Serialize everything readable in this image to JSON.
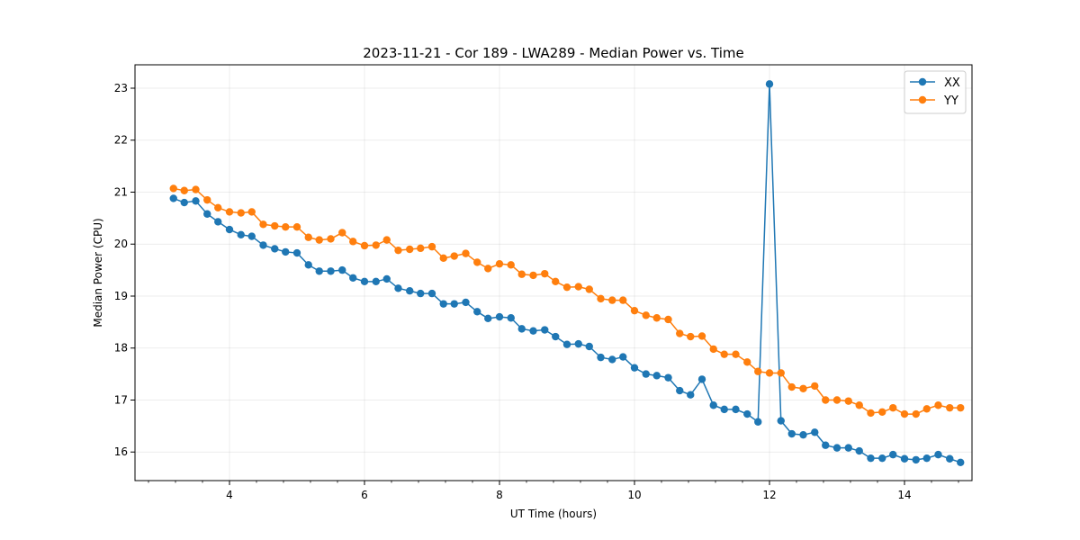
{
  "chart_data": {
    "type": "line",
    "title": "2023-11-21 - Cor 189 - LWA289 - Median Power vs. Time",
    "xlabel": "UT Time (hours)",
    "ylabel": "Median Power (CPU)",
    "xlim": [
      2.6,
      15.0
    ],
    "ylim": [
      15.45,
      23.45
    ],
    "xticks": [
      4,
      6,
      8,
      10,
      12,
      14
    ],
    "xtick_labels": [
      "4",
      "6",
      "8",
      "10",
      "12",
      "14"
    ],
    "yticks": [
      16,
      17,
      18,
      19,
      20,
      21,
      22,
      23
    ],
    "ytick_labels": [
      "16",
      "17",
      "18",
      "19",
      "20",
      "21",
      "22",
      "23"
    ],
    "grid": true,
    "legend_position": "top-right",
    "x": [
      3.17,
      3.33,
      3.5,
      3.67,
      3.83,
      4.0,
      4.17,
      4.33,
      4.5,
      4.67,
      4.83,
      5.0,
      5.17,
      5.33,
      5.5,
      5.67,
      5.83,
      6.0,
      6.17,
      6.33,
      6.5,
      6.67,
      6.83,
      7.0,
      7.17,
      7.33,
      7.5,
      7.67,
      7.83,
      8.0,
      8.17,
      8.33,
      8.5,
      8.67,
      8.83,
      9.0,
      9.17,
      9.33,
      9.5,
      9.67,
      9.83,
      10.0,
      10.17,
      10.33,
      10.5,
      10.67,
      10.83,
      11.0,
      11.17,
      11.33,
      11.5,
      11.67,
      11.83,
      12.0,
      12.17,
      12.33,
      12.5,
      12.67,
      12.83,
      13.0,
      13.17,
      13.33,
      13.5,
      13.67,
      13.83,
      14.0,
      14.17,
      14.33,
      14.5,
      14.67,
      14.83
    ],
    "series": [
      {
        "name": "XX",
        "color": "#1f77b4",
        "values": [
          20.88,
          20.8,
          20.83,
          20.58,
          20.43,
          20.28,
          20.18,
          20.15,
          19.98,
          19.91,
          19.85,
          19.83,
          19.6,
          19.48,
          19.48,
          19.5,
          19.35,
          19.28,
          19.28,
          19.33,
          19.15,
          19.1,
          19.05,
          19.05,
          18.85,
          18.85,
          18.88,
          18.7,
          18.57,
          18.6,
          18.58,
          18.37,
          18.33,
          18.35,
          18.22,
          18.07,
          18.08,
          18.03,
          17.82,
          17.78,
          17.83,
          17.62,
          17.5,
          17.47,
          17.43,
          17.18,
          17.1,
          17.4,
          16.9,
          16.82,
          16.82,
          16.73,
          16.58,
          23.08,
          16.6,
          16.35,
          16.33,
          16.38,
          16.13,
          16.08,
          16.08,
          16.02,
          15.88,
          15.88,
          15.95,
          15.87,
          15.85,
          15.88,
          15.95,
          15.87,
          15.8
        ]
      },
      {
        "name": "YY",
        "color": "#ff7f0e",
        "values": [
          21.07,
          21.03,
          21.05,
          20.85,
          20.7,
          20.62,
          20.6,
          20.62,
          20.38,
          20.35,
          20.33,
          20.33,
          20.13,
          20.08,
          20.1,
          20.22,
          20.05,
          19.97,
          19.98,
          20.08,
          19.88,
          19.9,
          19.92,
          19.95,
          19.73,
          19.77,
          19.82,
          19.65,
          19.53,
          19.62,
          19.6,
          19.42,
          19.4,
          19.43,
          19.28,
          19.17,
          19.18,
          19.13,
          18.95,
          18.92,
          18.92,
          18.72,
          18.63,
          18.58,
          18.55,
          18.28,
          18.22,
          18.23,
          17.98,
          17.88,
          17.88,
          17.73,
          17.55,
          17.52,
          17.52,
          17.25,
          17.22,
          17.27,
          17.0,
          17.0,
          16.98,
          16.9,
          16.75,
          16.77,
          16.85,
          16.73,
          16.73,
          16.83,
          16.9,
          16.85,
          16.85
        ]
      }
    ]
  }
}
